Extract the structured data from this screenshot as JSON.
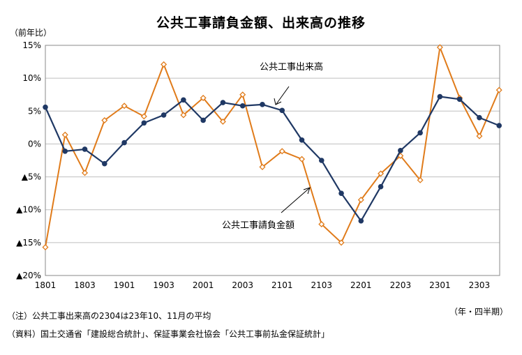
{
  "page": {
    "title": "公共工事請負金額、出来高の推移",
    "unit_label": "（前年比）",
    "frequency_label": "（年・四半期）",
    "notes": [
      "（注）公共工事出来高の2304は23年10、11月の平均",
      "（資料）国土交通省「建設総合統計」、保証事業会社協会「公共工事前払金保証統計」"
    ]
  },
  "chart_data": {
    "type": "line",
    "title": "公共工事請負金額、出来高の推移",
    "ylabel": "（前年比）",
    "xlabel": "（年・四半期）",
    "ylim": [
      -20,
      15
    ],
    "ytick_values": [
      15,
      10,
      5,
      0,
      -5,
      -10,
      -15,
      -20
    ],
    "ytick_labels": [
      "15%",
      "10%",
      "5%",
      "0%",
      "▲5%",
      "▲10%",
      "▲15%",
      "▲20%"
    ],
    "x": [
      "1801",
      "1802",
      "1803",
      "1804",
      "1901",
      "1902",
      "1903",
      "1904",
      "2001",
      "2002",
      "2003",
      "2004",
      "2101",
      "2102",
      "2103",
      "2104",
      "2201",
      "2202",
      "2203",
      "2204",
      "2301",
      "2302",
      "2303",
      "2304"
    ],
    "xtick_labels": [
      "1801",
      "1803",
      "1901",
      "1903",
      "2001",
      "2003",
      "2101",
      "2103",
      "2201",
      "2203",
      "2301",
      "2303"
    ],
    "grid": true,
    "series": [
      {
        "name": "公共工事出来高",
        "color": "#1f3864",
        "marker": "circle",
        "values": [
          5.6,
          -1.1,
          -0.8,
          -3.0,
          0.2,
          3.2,
          4.4,
          6.7,
          3.6,
          6.3,
          5.8,
          6.0,
          5.1,
          0.6,
          -2.5,
          -7.5,
          -11.7,
          -6.5,
          -1.0,
          1.7,
          7.2,
          6.8,
          4.0,
          2.8
        ]
      },
      {
        "name": "公共工事請負金額",
        "color": "#e07b1a",
        "marker": "diamond",
        "values": [
          -15.7,
          1.4,
          -4.4,
          3.6,
          5.8,
          4.2,
          12.1,
          4.4,
          7.0,
          3.4,
          7.5,
          -3.5,
          -1.1,
          -2.3,
          -12.2,
          -15.0,
          -8.5,
          -4.5,
          -1.8,
          -5.5,
          14.7,
          7.0,
          1.2,
          8.2
        ]
      }
    ]
  }
}
